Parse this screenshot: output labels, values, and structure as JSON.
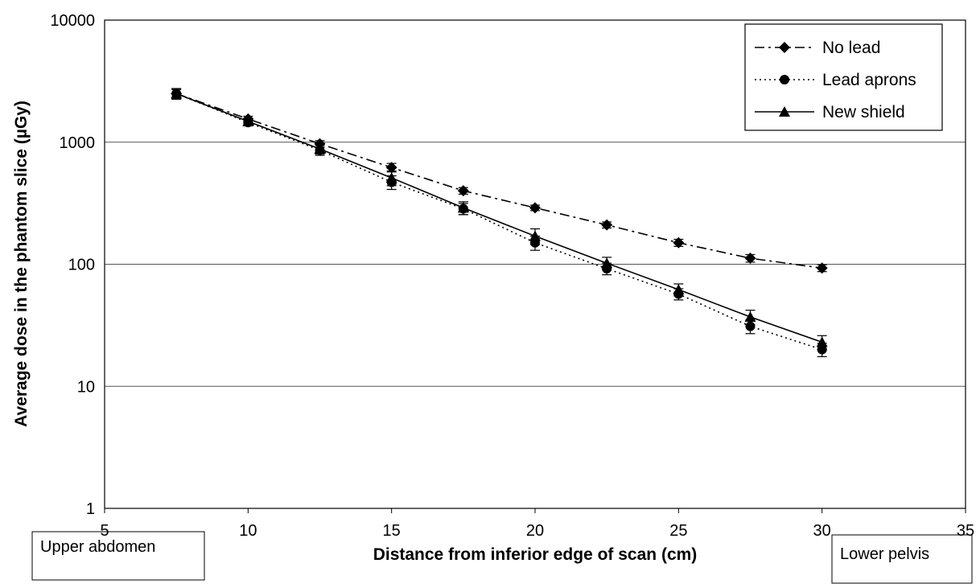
{
  "chart_data": {
    "type": "line",
    "title": "",
    "xlabel": "Distance from inferior edge of scan (cm)",
    "ylabel": "Average dose in the phantom slice (µGy)",
    "xlim": [
      5,
      35
    ],
    "ylim": [
      1,
      10000
    ],
    "y_scale": "log",
    "x_ticks": [
      "5",
      "10",
      "15",
      "20",
      "25",
      "30",
      "35"
    ],
    "y_ticks": [
      "1",
      "10",
      "100",
      "1000",
      "10000"
    ],
    "grid": "horizontal major lines",
    "legend_position": "top-right",
    "region_labels": {
      "left": "Upper abdomen",
      "right": "Lower pelvis"
    },
    "x": [
      7.5,
      10,
      12.5,
      15,
      17.5,
      20,
      22.5,
      25,
      27.5,
      30
    ],
    "series": [
      {
        "name": "No lead",
        "marker": "diamond",
        "line_style": "dash-dot",
        "values": [
          2500,
          1550,
          970,
          620,
          400,
          290,
          210,
          150,
          112,
          93
        ],
        "errors": [
          200,
          80,
          60,
          50,
          25,
          15,
          12,
          10,
          8,
          6
        ]
      },
      {
        "name": "Lead aprons",
        "marker": "circle",
        "line_style": "dotted",
        "values": [
          2500,
          1450,
          860,
          470,
          285,
          150,
          92,
          57,
          31,
          20
        ],
        "errors": [
          250,
          90,
          80,
          60,
          30,
          20,
          10,
          6,
          4,
          2.5
        ]
      },
      {
        "name": "New shield",
        "marker": "triangle",
        "line_style": "solid",
        "values": [
          2500,
          1480,
          880,
          510,
          290,
          170,
          102,
          62,
          37,
          23
        ],
        "errors": [
          250,
          90,
          80,
          70,
          35,
          25,
          12,
          7,
          5,
          3
        ]
      }
    ]
  }
}
